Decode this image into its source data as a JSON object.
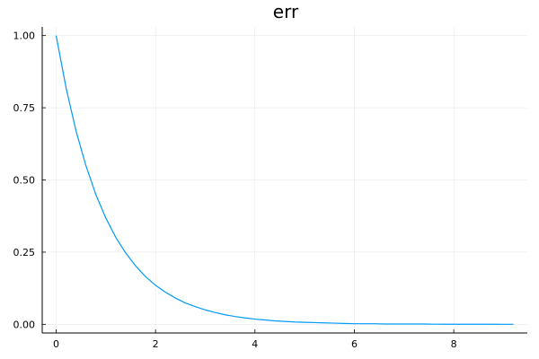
{
  "chart_data": {
    "type": "line",
    "title": "err",
    "xlabel": "",
    "ylabel": "",
    "xlim": [
      -0.28,
      9.48
    ],
    "ylim": [
      -0.03,
      1.03
    ],
    "xticks": [
      0,
      2,
      4,
      6,
      8
    ],
    "yticks": [
      0.0,
      0.25,
      0.5,
      0.75,
      1.0
    ],
    "xtick_labels": [
      "0",
      "2",
      "4",
      "6",
      "8"
    ],
    "ytick_labels": [
      "0.00",
      "0.25",
      "0.50",
      "0.75",
      "1.00"
    ],
    "grid": true,
    "legend": "none",
    "series": [
      {
        "color": "#009AFA",
        "x": [
          0.0,
          0.2,
          0.4,
          0.6,
          0.8,
          1.0,
          1.2,
          1.4,
          1.6,
          1.8,
          2.0,
          2.2,
          2.4,
          2.6,
          2.8,
          3.0,
          3.2,
          3.4,
          3.6,
          3.8,
          4.0,
          4.2,
          4.4,
          4.6,
          4.8,
          5.0,
          5.2,
          5.4,
          5.6,
          5.8,
          6.0,
          6.2,
          6.4,
          6.6,
          6.8,
          7.0,
          7.2,
          7.4,
          7.6,
          7.8,
          8.0,
          8.2,
          8.4,
          8.6,
          8.8,
          9.0,
          9.2
        ],
        "y": [
          1.0,
          0.819,
          0.67,
          0.549,
          0.449,
          0.368,
          0.301,
          0.247,
          0.202,
          0.165,
          0.135,
          0.111,
          0.091,
          0.074,
          0.061,
          0.05,
          0.041,
          0.033,
          0.027,
          0.022,
          0.018,
          0.015,
          0.012,
          0.01,
          0.008,
          0.007,
          0.006,
          0.005,
          0.004,
          0.003,
          0.002,
          0.002,
          0.002,
          0.001,
          0.001,
          0.001,
          0.001,
          0.001,
          0.0005,
          0.0004,
          0.0003,
          0.0003,
          0.0002,
          0.0002,
          0.0002,
          0.0001,
          0.0001
        ]
      }
    ]
  }
}
